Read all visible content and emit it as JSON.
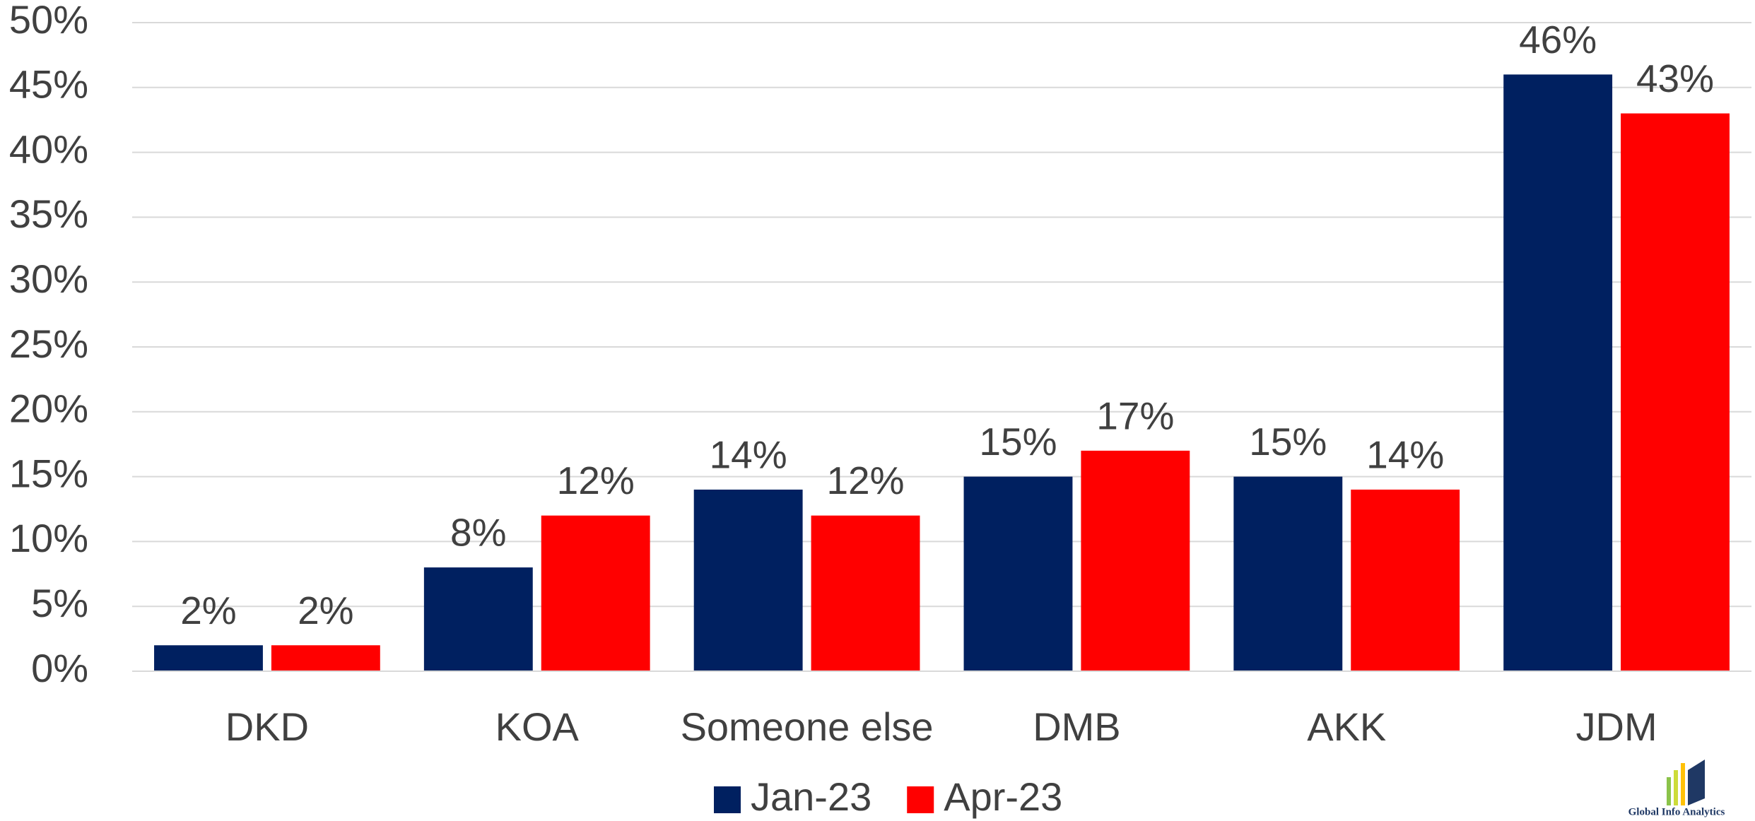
{
  "chart_data": {
    "type": "bar",
    "categories": [
      "DKD",
      "KOA",
      "Someone else",
      "DMB",
      "AKK",
      "JDM"
    ],
    "series": [
      {
        "name": "Jan-23",
        "color": "#002060",
        "values": [
          2,
          8,
          14,
          15,
          15,
          46
        ],
        "value_labels": [
          "2%",
          "8%",
          "14%",
          "15%",
          "15%",
          "46%"
        ]
      },
      {
        "name": "Apr-23",
        "color": "#ff0000",
        "values": [
          2,
          12,
          12,
          17,
          14,
          43
        ],
        "value_labels": [
          "2%",
          "12%",
          "12%",
          "17%",
          "14%",
          "43%"
        ]
      }
    ],
    "ylim": [
      0,
      50
    ],
    "yticks": [
      {
        "value": 0,
        "label": "0%"
      },
      {
        "value": 5,
        "label": "5%"
      },
      {
        "value": 10,
        "label": "10%"
      },
      {
        "value": 15,
        "label": "15%"
      },
      {
        "value": 20,
        "label": "20%"
      },
      {
        "value": 25,
        "label": "25%"
      },
      {
        "value": 30,
        "label": "30%"
      },
      {
        "value": 35,
        "label": "35%"
      },
      {
        "value": 40,
        "label": "40%"
      },
      {
        "value": 45,
        "label": "45%"
      },
      {
        "value": 50,
        "label": "50%"
      }
    ],
    "grid": true,
    "legend": "bottom",
    "watermark": "Global Info Analytics"
  }
}
